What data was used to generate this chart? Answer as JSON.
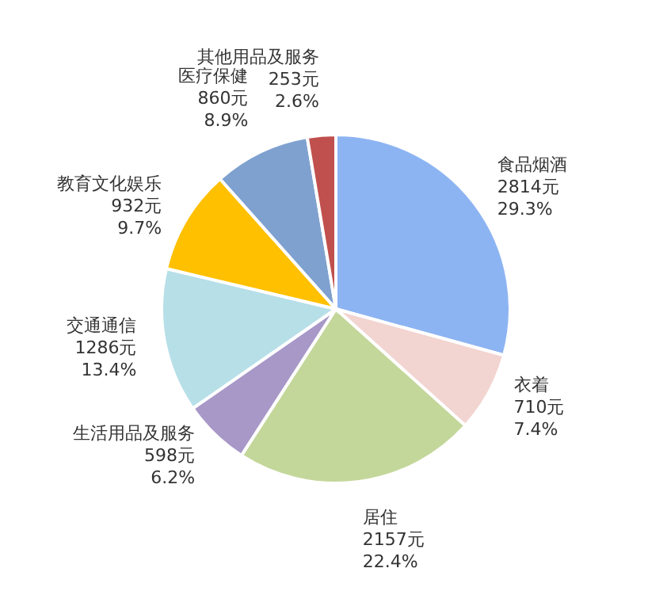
{
  "chart_data": {
    "type": "pie",
    "categories": [
      "食品烟酒",
      "衣着",
      "居住",
      "生活用品及服务",
      "交通通信",
      "教育文化娱乐",
      "医疗保健",
      "其他用品及服务"
    ],
    "values": [
      2814,
      710,
      2157,
      598,
      1286,
      932,
      860,
      253
    ],
    "value_labels": [
      "2814元\n29.3%",
      "710元\n7.4%",
      "2157元\n22.4%",
      "598元\n6.2%",
      "1286元\n13.4%",
      "932元\n9.7%",
      "860元\n8.9%",
      "253元\n2.6%"
    ],
    "colors": [
      "#8db4f2",
      "#f2d4d0",
      "#c4d79b",
      "#a898c8",
      "#b7dfe8",
      "#ffc000",
      "#7fa1cf",
      "#c0504d"
    ]
  }
}
